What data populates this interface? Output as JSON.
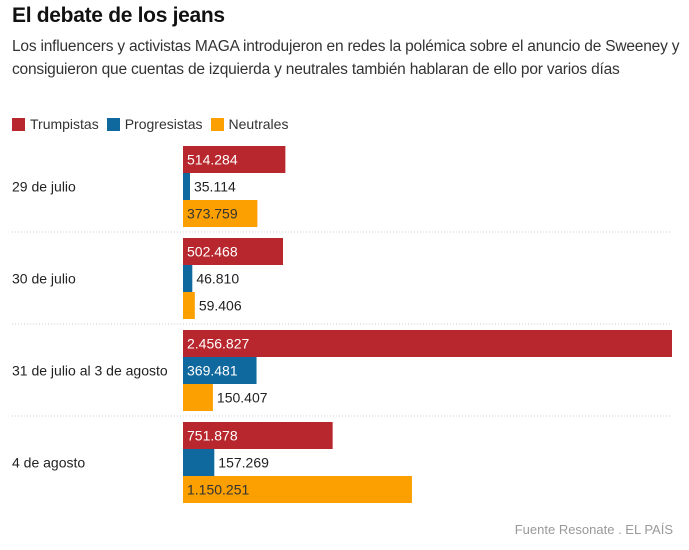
{
  "header": {
    "title": "El debate de los jeans",
    "subtitle": "Los influencers y activistas MAGA introdujeron en redes la polémica sobre el anuncio de Sweeney y consiguieron que cuentas de izquierda y neutrales también hablaran de ello por varios días"
  },
  "legend": [
    {
      "label": "Trumpistas",
      "color": "#b8272d"
    },
    {
      "label": "Progresistas",
      "color": "#10699e"
    },
    {
      "label": "Neutrales",
      "color": "#fba000"
    }
  ],
  "chart_data": {
    "type": "bar",
    "orientation": "horizontal-grouped",
    "title": "El debate de los jeans",
    "categories": [
      "29 de julio",
      "30 de julio",
      "31 de julio al 3 de agosto",
      "4 de agosto"
    ],
    "series": [
      {
        "name": "Trumpistas",
        "color": "#b8272d",
        "values": [
          514284,
          502468,
          2456827,
          751878
        ],
        "labels": [
          "514.284",
          "502.468",
          "2.456.827",
          "751.878"
        ]
      },
      {
        "name": "Progresistas",
        "color": "#10699e",
        "values": [
          35114,
          46810,
          369481,
          157269
        ],
        "labels": [
          "35.114",
          "46.810",
          "369.481",
          "157.269"
        ]
      },
      {
        "name": "Neutrales",
        "color": "#fba000",
        "values": [
          373759,
          59406,
          150407,
          1150251
        ],
        "labels": [
          "373.759",
          "59.406",
          "150.407",
          "1.150.251"
        ]
      }
    ],
    "xlim": [
      0,
      2456827
    ],
    "grid": false,
    "legend_position": "top-left"
  },
  "footer": {
    "source": "Fuente Resonate . EL PAÍS"
  }
}
